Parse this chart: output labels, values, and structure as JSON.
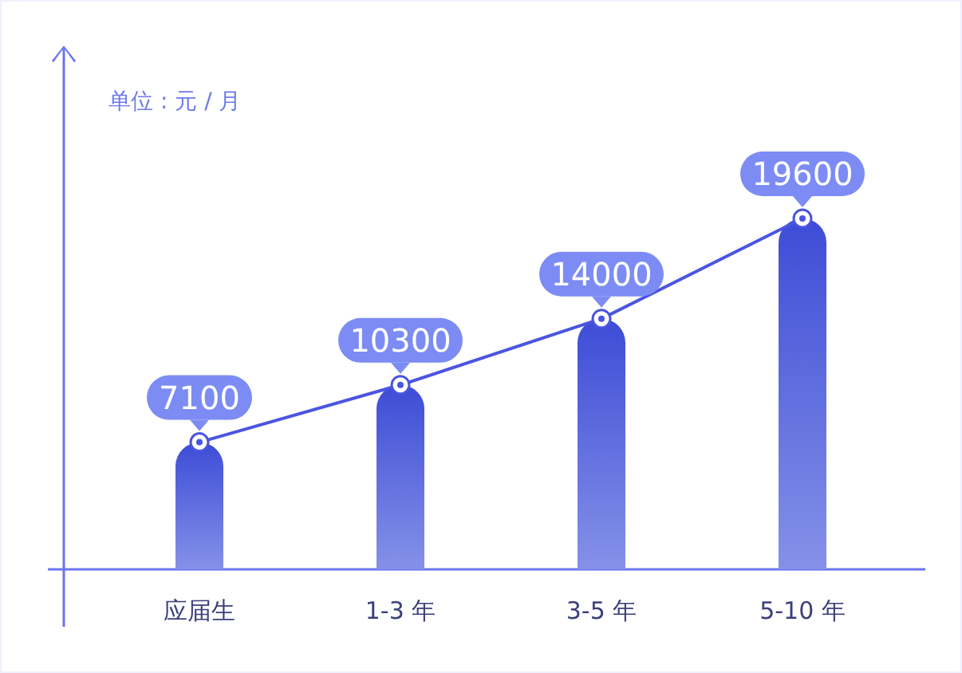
{
  "chart_data": {
    "type": "bar",
    "ylabel": "单位 : 元 / 月",
    "categories": [
      "应届生",
      "1-3 年",
      "3-5 年",
      "5-10 年"
    ],
    "series": [
      {
        "color": "#3d4cd6",
        "values": [
          7100,
          10300,
          14000,
          19600
        ]
      },
      {
        "type": "line",
        "color": "#4a55e0",
        "marker": "circle",
        "values": [
          7100,
          10300,
          14000,
          19600
        ],
        "value_labels": [
          "7100",
          "10300",
          "14000",
          "19600"
        ]
      }
    ]
  }
}
